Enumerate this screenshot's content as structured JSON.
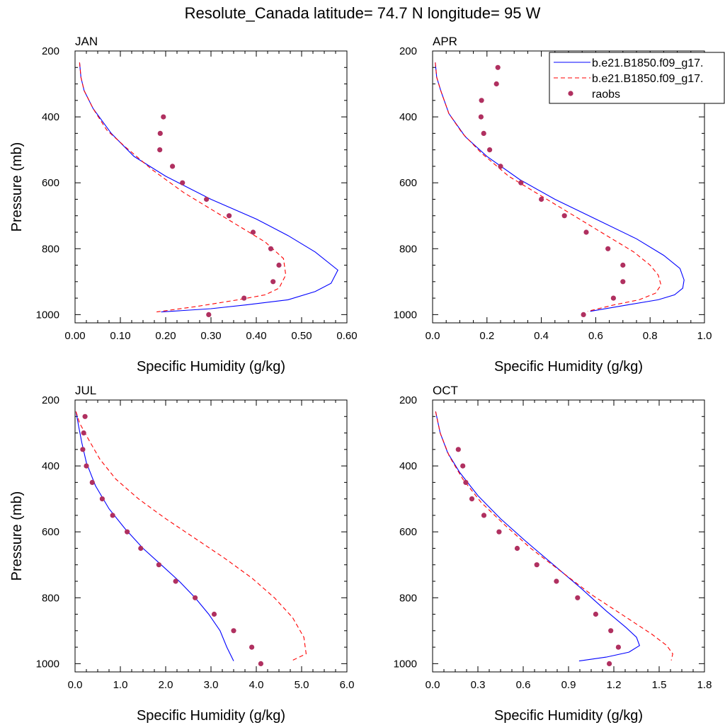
{
  "title": "Resolute_Canada  latitude= 74.7 N longitude= 95 W",
  "legend": {
    "entries": [
      {
        "label": "b.e21.B1850.f09_g17.",
        "style": "solid",
        "color": "#0000ff"
      },
      {
        "label": "b.e21.B1850.f09_g17.",
        "style": "dashed",
        "color": "#ff0000"
      },
      {
        "label": "raobs",
        "style": "marker",
        "color": "#b03060"
      }
    ]
  },
  "colors": {
    "model1": "#0000ff",
    "model2": "#ff0000",
    "obs": "#b03060"
  },
  "chart_data": [
    {
      "type": "line",
      "panel": "JAN",
      "xlabel": "Specific Humidity (g/kg)",
      "ylabel": "Pressure (mb)",
      "xlim": [
        0,
        0.6
      ],
      "ylim": [
        200,
        1025
      ],
      "y_inverted": true,
      "xticks": [
        "0.00",
        "0.10",
        "0.20",
        "0.30",
        "0.40",
        "0.50",
        "0.60"
      ],
      "yticks": [
        "200",
        "400",
        "600",
        "800",
        "1000"
      ],
      "series": [
        {
          "style": "solid",
          "points": [
            [
              0.01,
              235
            ],
            [
              0.013,
              280
            ],
            [
              0.02,
              320
            ],
            [
              0.04,
              375
            ],
            [
              0.08,
              450
            ],
            [
              0.13,
              520
            ],
            [
              0.2,
              580
            ],
            [
              0.3,
              650
            ],
            [
              0.4,
              710
            ],
            [
              0.47,
              760
            ],
            [
              0.53,
              810
            ],
            [
              0.58,
              865
            ],
            [
              0.565,
              905
            ],
            [
              0.53,
              930
            ],
            [
              0.47,
              955
            ],
            [
              0.38,
              970
            ],
            [
              0.3,
              982
            ],
            [
              0.19,
              992
            ]
          ]
        },
        {
          "style": "dashed",
          "points": [
            [
              0.01,
              235
            ],
            [
              0.013,
              280
            ],
            [
              0.02,
              320
            ],
            [
              0.04,
              375
            ],
            [
              0.07,
              440
            ],
            [
              0.11,
              490
            ],
            [
              0.17,
              560
            ],
            [
              0.24,
              630
            ],
            [
              0.3,
              680
            ],
            [
              0.36,
              730
            ],
            [
              0.42,
              780
            ],
            [
              0.46,
              830
            ],
            [
              0.465,
              880
            ],
            [
              0.45,
              920
            ],
            [
              0.42,
              940
            ],
            [
              0.36,
              955
            ],
            [
              0.27,
              975
            ],
            [
              0.18,
              992
            ]
          ]
        }
      ],
      "obs": [
        [
          0.195,
          400
        ],
        [
          0.188,
          450
        ],
        [
          0.187,
          500
        ],
        [
          0.215,
          550
        ],
        [
          0.237,
          600
        ],
        [
          0.29,
          650
        ],
        [
          0.34,
          700
        ],
        [
          0.393,
          750
        ],
        [
          0.432,
          800
        ],
        [
          0.45,
          850
        ],
        [
          0.437,
          900
        ],
        [
          0.373,
          950
        ],
        [
          0.295,
          1000
        ]
      ]
    },
    {
      "type": "line",
      "panel": "APR",
      "xlabel": "Specific Humidity (g/kg)",
      "ylabel": "",
      "xlim": [
        0,
        1.0
      ],
      "ylim": [
        200,
        1025
      ],
      "y_inverted": true,
      "xticks": [
        "0.0",
        "0.2",
        "0.4",
        "0.6",
        "0.8",
        "1.0"
      ],
      "yticks": [
        "200",
        "400",
        "600",
        "800",
        "1000"
      ],
      "series": [
        {
          "style": "solid",
          "points": [
            [
              0.01,
              235
            ],
            [
              0.015,
              280
            ],
            [
              0.03,
              320
            ],
            [
              0.06,
              390
            ],
            [
              0.12,
              460
            ],
            [
              0.2,
              520
            ],
            [
              0.32,
              590
            ],
            [
              0.45,
              650
            ],
            [
              0.6,
              710
            ],
            [
              0.75,
              770
            ],
            [
              0.85,
              820
            ],
            [
              0.91,
              860
            ],
            [
              0.925,
              895
            ],
            [
              0.92,
              920
            ],
            [
              0.89,
              940
            ],
            [
              0.83,
              955
            ],
            [
              0.72,
              970
            ],
            [
              0.58,
              990
            ]
          ]
        },
        {
          "style": "dashed",
          "points": [
            [
              0.01,
              235
            ],
            [
              0.015,
              280
            ],
            [
              0.03,
              320
            ],
            [
              0.06,
              390
            ],
            [
              0.11,
              450
            ],
            [
              0.18,
              510
            ],
            [
              0.28,
              580
            ],
            [
              0.4,
              640
            ],
            [
              0.52,
              700
            ],
            [
              0.64,
              760
            ],
            [
              0.74,
              810
            ],
            [
              0.8,
              850
            ],
            [
              0.83,
              880
            ],
            [
              0.84,
              910
            ],
            [
              0.82,
              935
            ],
            [
              0.76,
              955
            ],
            [
              0.67,
              970
            ],
            [
              0.57,
              990
            ]
          ]
        }
      ],
      "obs": [
        [
          0.24,
          250
        ],
        [
          0.235,
          300
        ],
        [
          0.18,
          350
        ],
        [
          0.178,
          400
        ],
        [
          0.188,
          450
        ],
        [
          0.21,
          500
        ],
        [
          0.25,
          550
        ],
        [
          0.325,
          600
        ],
        [
          0.4,
          650
        ],
        [
          0.485,
          700
        ],
        [
          0.565,
          750
        ],
        [
          0.645,
          800
        ],
        [
          0.7,
          850
        ],
        [
          0.7,
          900
        ],
        [
          0.665,
          950
        ],
        [
          0.555,
          1000
        ]
      ]
    },
    {
      "type": "line",
      "panel": "JUL",
      "xlabel": "Specific Humidity (g/kg)",
      "ylabel": "Pressure (mb)",
      "xlim": [
        0,
        6.0
      ],
      "ylim": [
        200,
        1025
      ],
      "y_inverted": true,
      "xticks": [
        "0.0",
        "1.0",
        "2.0",
        "3.0",
        "4.0",
        "5.0",
        "6.0"
      ],
      "yticks": [
        "200",
        "400",
        "600",
        "800",
        "1000"
      ],
      "series": [
        {
          "style": "solid",
          "points": [
            [
              0.02,
              235
            ],
            [
              0.08,
              280
            ],
            [
              0.15,
              330
            ],
            [
              0.25,
              390
            ],
            [
              0.45,
              460
            ],
            [
              0.75,
              530
            ],
            [
              1.1,
              590
            ],
            [
              1.5,
              650
            ],
            [
              1.9,
              700
            ],
            [
              2.3,
              750
            ],
            [
              2.65,
              800
            ],
            [
              2.95,
              850
            ],
            [
              3.2,
              900
            ],
            [
              3.35,
              950
            ],
            [
              3.5,
              992
            ]
          ]
        },
        {
          "style": "dashed",
          "points": [
            [
              0.02,
              235
            ],
            [
              0.1,
              270
            ],
            [
              0.3,
              320
            ],
            [
              0.55,
              380
            ],
            [
              0.9,
              440
            ],
            [
              1.4,
              500
            ],
            [
              2.0,
              560
            ],
            [
              2.65,
              620
            ],
            [
              3.3,
              680
            ],
            [
              3.9,
              740
            ],
            [
              4.4,
              800
            ],
            [
              4.8,
              860
            ],
            [
              5.05,
              920
            ],
            [
              5.1,
              970
            ],
            [
              4.8,
              990
            ]
          ]
        }
      ],
      "obs": [
        [
          0.22,
          250
        ],
        [
          0.19,
          300
        ],
        [
          0.17,
          350
        ],
        [
          0.25,
          400
        ],
        [
          0.38,
          450
        ],
        [
          0.6,
          500
        ],
        [
          0.83,
          550
        ],
        [
          1.15,
          600
        ],
        [
          1.45,
          650
        ],
        [
          1.85,
          700
        ],
        [
          2.22,
          750
        ],
        [
          2.65,
          800
        ],
        [
          3.07,
          850
        ],
        [
          3.5,
          900
        ],
        [
          3.9,
          950
        ],
        [
          4.1,
          1000
        ]
      ]
    },
    {
      "type": "line",
      "panel": "OCT",
      "xlabel": "Specific Humidity (g/kg)",
      "ylabel": "",
      "xlim": [
        0,
        1.8
      ],
      "ylim": [
        200,
        1025
      ],
      "y_inverted": true,
      "xticks": [
        "0.0",
        "0.3",
        "0.6",
        "0.9",
        "1.2",
        "1.5",
        "1.8"
      ],
      "yticks": [
        "200",
        "400",
        "600",
        "800",
        "1000"
      ],
      "series": [
        {
          "style": "solid",
          "points": [
            [
              0.02,
              235
            ],
            [
              0.05,
              300
            ],
            [
              0.1,
              360
            ],
            [
              0.18,
              420
            ],
            [
              0.3,
              490
            ],
            [
              0.45,
              560
            ],
            [
              0.62,
              630
            ],
            [
              0.8,
              700
            ],
            [
              0.98,
              770
            ],
            [
              1.15,
              840
            ],
            [
              1.28,
              890
            ],
            [
              1.35,
              920
            ],
            [
              1.37,
              945
            ],
            [
              1.3,
              965
            ],
            [
              1.15,
              980
            ],
            [
              0.97,
              992
            ]
          ]
        },
        {
          "style": "dashed",
          "points": [
            [
              0.02,
              235
            ],
            [
              0.05,
              300
            ],
            [
              0.11,
              370
            ],
            [
              0.2,
              440
            ],
            [
              0.32,
              510
            ],
            [
              0.48,
              580
            ],
            [
              0.65,
              650
            ],
            [
              0.85,
              720
            ],
            [
              1.05,
              790
            ],
            [
              1.25,
              850
            ],
            [
              1.45,
              910
            ],
            [
              1.55,
              945
            ],
            [
              1.59,
              970
            ],
            [
              1.58,
              990
            ]
          ]
        }
      ],
      "obs": [
        [
          0.17,
          350
        ],
        [
          0.2,
          400
        ],
        [
          0.22,
          450
        ],
        [
          0.26,
          500
        ],
        [
          0.34,
          550
        ],
        [
          0.44,
          600
        ],
        [
          0.56,
          650
        ],
        [
          0.69,
          700
        ],
        [
          0.82,
          750
        ],
        [
          0.96,
          800
        ],
        [
          1.08,
          850
        ],
        [
          1.18,
          900
        ],
        [
          1.23,
          950
        ],
        [
          1.17,
          1000
        ]
      ]
    }
  ]
}
